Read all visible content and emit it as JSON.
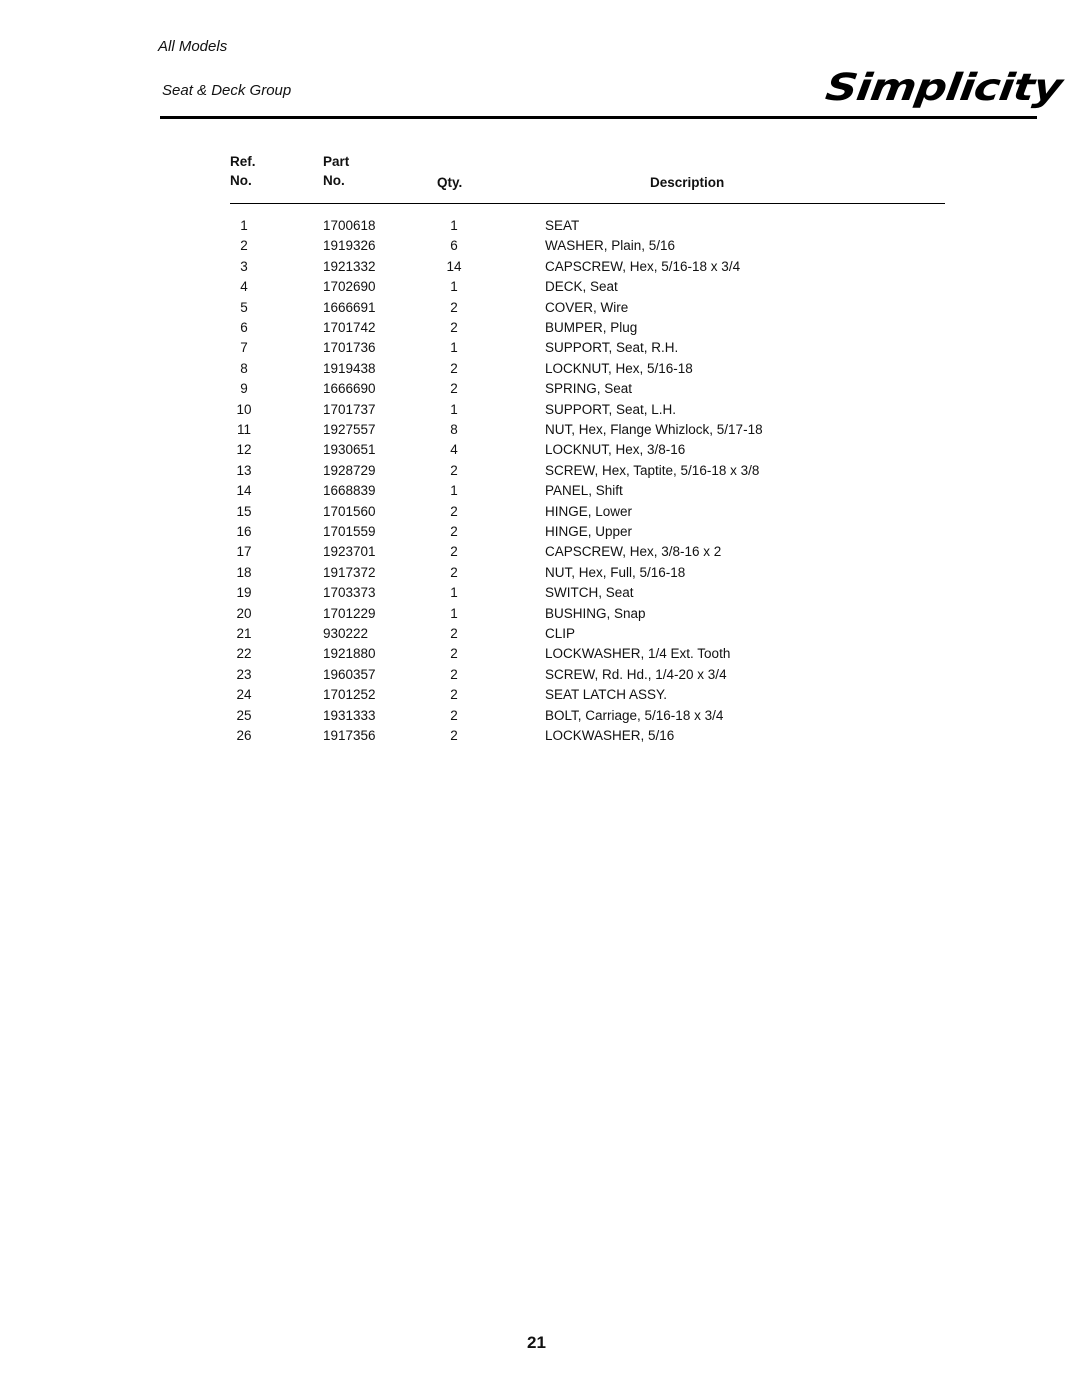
{
  "header": {
    "models": "All Models",
    "group": "Seat & Deck Group",
    "logo": "Simplicity"
  },
  "table": {
    "columns": {
      "ref": [
        "Ref.",
        "No."
      ],
      "part": [
        "Part",
        "No."
      ],
      "qty": "Qty.",
      "description": "Description"
    },
    "rows": [
      {
        "ref": "1",
        "part": "1700618",
        "qty": "1",
        "desc": "SEAT"
      },
      {
        "ref": "2",
        "part": "1919326",
        "qty": "6",
        "desc": "WASHER, Plain, 5/16"
      },
      {
        "ref": "3",
        "part": "1921332",
        "qty": "14",
        "desc": "CAPSCREW, Hex, 5/16-18 x 3/4"
      },
      {
        "ref": "4",
        "part": "1702690",
        "qty": "1",
        "desc": "DECK, Seat"
      },
      {
        "ref": "5",
        "part": "1666691",
        "qty": "2",
        "desc": "COVER, Wire"
      },
      {
        "ref": "6",
        "part": "1701742",
        "qty": "2",
        "desc": "BUMPER, Plug"
      },
      {
        "ref": "7",
        "part": "1701736",
        "qty": "1",
        "desc": "SUPPORT, Seat, R.H."
      },
      {
        "ref": "8",
        "part": "1919438",
        "qty": "2",
        "desc": "LOCKNUT, Hex, 5/16-18"
      },
      {
        "ref": "9",
        "part": "1666690",
        "qty": "2",
        "desc": "SPRING, Seat"
      },
      {
        "ref": "10",
        "part": "1701737",
        "qty": "1",
        "desc": "SUPPORT, Seat, L.H."
      },
      {
        "ref": "11",
        "part": "1927557",
        "qty": "8",
        "desc": "NUT, Hex, Flange Whizlock, 5/17-18"
      },
      {
        "ref": "12",
        "part": "1930651",
        "qty": "4",
        "desc": "LOCKNUT, Hex, 3/8-16"
      },
      {
        "ref": "13",
        "part": "1928729",
        "qty": "2",
        "desc": "SCREW, Hex, Taptite, 5/16-18 x 3/8"
      },
      {
        "ref": "14",
        "part": "1668839",
        "qty": "1",
        "desc": "PANEL, Shift"
      },
      {
        "ref": "15",
        "part": "1701560",
        "qty": "2",
        "desc": "HINGE, Lower"
      },
      {
        "ref": "16",
        "part": "1701559",
        "qty": "2",
        "desc": "HINGE, Upper"
      },
      {
        "ref": "17",
        "part": "1923701",
        "qty": "2",
        "desc": "CAPSCREW, Hex, 3/8-16 x 2"
      },
      {
        "ref": "18",
        "part": "1917372",
        "qty": "2",
        "desc": "NUT, Hex, Full, 5/16-18"
      },
      {
        "ref": "19",
        "part": "1703373",
        "qty": "1",
        "desc": "SWITCH, Seat"
      },
      {
        "ref": "20",
        "part": "1701229",
        "qty": "1",
        "desc": "BUSHING, Snap"
      },
      {
        "ref": "21",
        "part": "930222",
        "qty": "2",
        "desc": "CLIP"
      },
      {
        "ref": "22",
        "part": "1921880",
        "qty": "2",
        "desc": "LOCKWASHER, 1/4 Ext. Tooth"
      },
      {
        "ref": "23",
        "part": "1960357",
        "qty": "2",
        "desc": "SCREW, Rd. Hd., 1/4-20 x 3/4"
      },
      {
        "ref": "24",
        "part": "1701252",
        "qty": "2",
        "desc": "SEAT LATCH ASSY."
      },
      {
        "ref": "25",
        "part": "1931333",
        "qty": "2",
        "desc": "BOLT, Carriage, 5/16-18 x 3/4"
      },
      {
        "ref": "26",
        "part": "1917356",
        "qty": "2",
        "desc": "LOCKWASHER, 5/16"
      }
    ]
  },
  "page_number": "21"
}
